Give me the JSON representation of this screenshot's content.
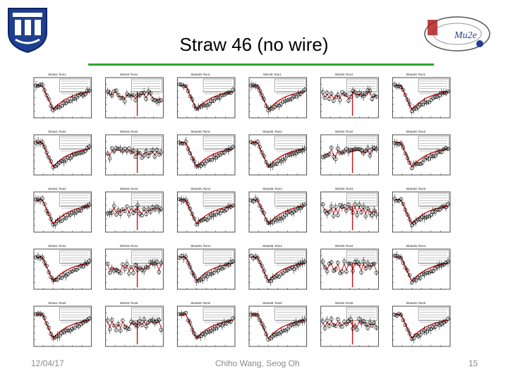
{
  "slide": {
    "title": "Straw 46 (no wire)",
    "footer_date": "12/04/17",
    "footer_author": "Chiho Wang, Seog Oh",
    "page_number": "15"
  },
  "logos": {
    "left": "duke-university-shield",
    "right": "mu2e-logo",
    "right_text": "Mu2e"
  },
  "colors": {
    "title_bar": "#2fa52f",
    "fit_line": "#cc1111",
    "data_marker": "#000000",
    "logo_blue": "#1f3f8f",
    "logo_red": "#b22222"
  },
  "panels": {
    "rows": 5,
    "cols": 6,
    "plot_titles": [
      [
        "Straw1: Run1",
        "Wire46: Run1",
        "Straw46: Run1",
        "Wire46: Run1",
        "Wire46: Run1",
        "Straw46: Run1"
      ],
      [
        "Straw1: Run2",
        "Wire46: Run2",
        "Straw46: Run2",
        "Straw46: Run2",
        "Wire46: Run2",
        "Straw46: Run2"
      ],
      [
        "Straw1: Run3",
        "Wire46: Run3",
        "Straw46: Run3",
        "Straw46: Run3",
        "Wire46: Run3",
        "Straw46: Run3"
      ],
      [
        "Straw1: Run4",
        "Wire46: Run4",
        "Straw46: Run4",
        "Straw46: Run4",
        "Wire46: Run4",
        "Straw46: Run4"
      ],
      [
        "Straw1: Run5",
        "Wire46: Run5",
        "Straw46: Run5",
        "Straw46: Run5",
        "Wire46: Run5",
        "Straw46: Run5"
      ]
    ],
    "kinds": [
      [
        "dip",
        "noise",
        "dip",
        "dip",
        "noise",
        "dip"
      ],
      [
        "dip",
        "noise",
        "dip",
        "dip",
        "noise",
        "dip"
      ],
      [
        "dip",
        "noise",
        "dip",
        "dip",
        "noise",
        "dip"
      ],
      [
        "dip",
        "noise",
        "dip",
        "dip",
        "noise",
        "dip"
      ],
      [
        "dip",
        "noise",
        "dip",
        "dip",
        "noise",
        "dip"
      ]
    ]
  }
}
